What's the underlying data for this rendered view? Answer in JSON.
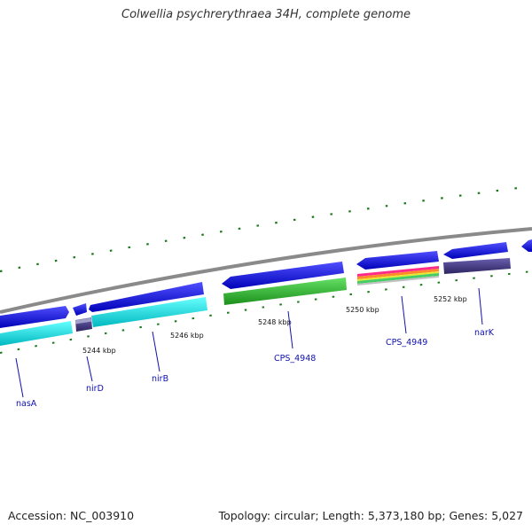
{
  "header": {
    "title": "Colwellia psychrerythraea 34H, complete genome"
  },
  "footer": {
    "accession_label": "Accession:",
    "accession": "NC_003910",
    "topology_label": "Topology:",
    "topology": "circular",
    "length_label": "Length:",
    "length": "5,373,180 bp",
    "genes_label": "Genes:",
    "genes": "5,027"
  },
  "colors": {
    "forward_strand": "#1a1aff",
    "cyan_gene": "#22ffff",
    "green_gene": "#33cc33",
    "purple_gene": "#4b3f8f",
    "backbone": "#888888",
    "tick": "#1c7a1c",
    "label": "#1010b0"
  },
  "scale_labels": [
    "5244 kbp",
    "5246 kbp",
    "5248 kbp",
    "5250 kbp",
    "5252 kbp"
  ],
  "gene_labels": [
    "nasA",
    "nirD",
    "nirB",
    "CPS_4948",
    "CPS_4949",
    "narK"
  ]
}
